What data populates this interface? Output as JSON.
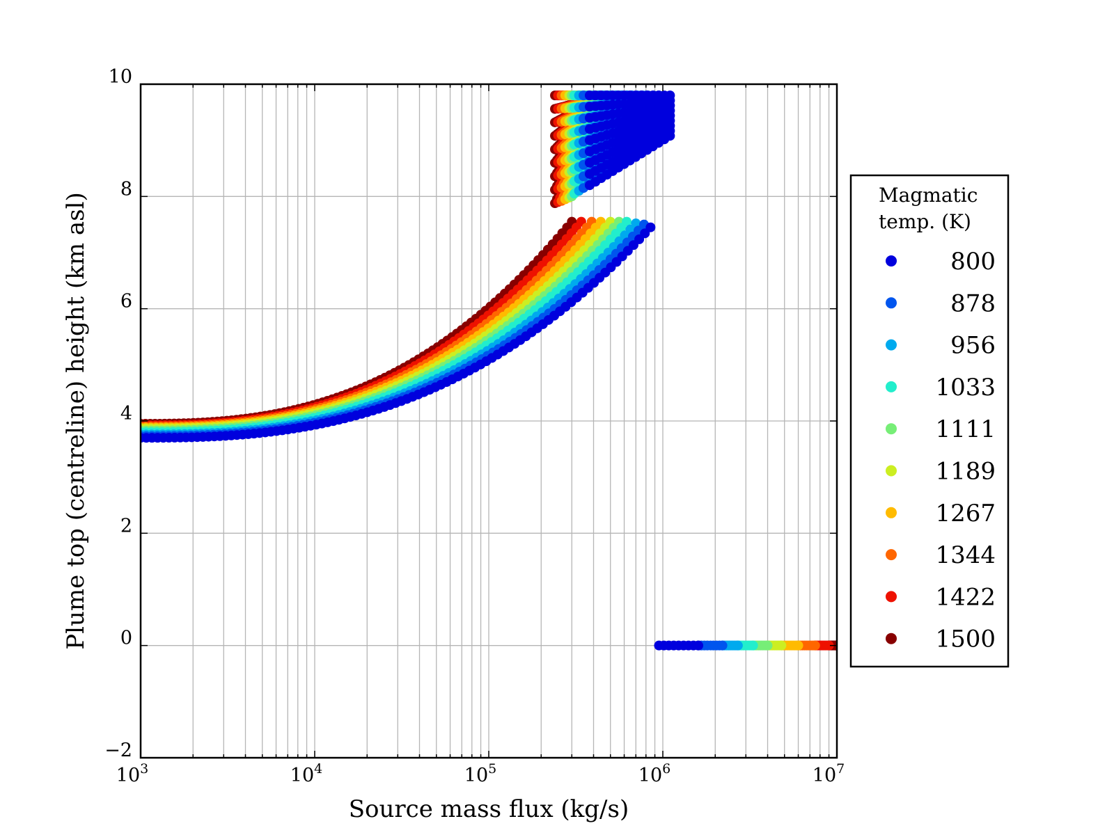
{
  "chart_data": {
    "type": "scatter",
    "title": "",
    "xlabel": "Source mass flux (kg/s)",
    "ylabel": "Plume top (centreline) height (km asl)",
    "xscale": "log",
    "xlim": [
      1000,
      10000000
    ],
    "ylim": [
      -2,
      10
    ],
    "grid": true,
    "x_ticks": [
      {
        "base": "10",
        "exp": "3"
      },
      {
        "base": "10",
        "exp": "4"
      },
      {
        "base": "10",
        "exp": "5"
      },
      {
        "base": "10",
        "exp": "6"
      },
      {
        "base": "10",
        "exp": "7"
      }
    ],
    "y_ticks": [
      "−2",
      "0",
      "2",
      "4",
      "6",
      "8",
      "10"
    ],
    "legend": {
      "title_line1": "Magmatic",
      "title_line2": "temp. (K)",
      "placement": "outside-right"
    },
    "series": [
      {
        "name": "800",
        "color": "#0000dd",
        "lower_branch": {
          "x_start": 1000,
          "x_end": 850000,
          "y_start": 3.7,
          "y_end": 7.45
        },
        "upper_branch": {
          "x_start": 380000,
          "x_end": 1100000,
          "y_low": 8.2,
          "y_high": 9.8
        },
        "zero_branch": {
          "x_start": 950000,
          "x_end": 1600000
        }
      },
      {
        "name": "878",
        "color": "#0055ee",
        "lower_branch": {
          "x_start": 1000,
          "x_end": 780000,
          "y_start": 3.73,
          "y_end": 7.5
        },
        "upper_branch": {
          "x_start": 350000,
          "x_end": 950000,
          "y_low": 8.15,
          "y_high": 9.8
        },
        "zero_branch": {
          "x_start": 1600000,
          "x_end": 2200000
        }
      },
      {
        "name": "956",
        "color": "#00aaee",
        "lower_branch": {
          "x_start": 1000,
          "x_end": 700000,
          "y_start": 3.76,
          "y_end": 7.52
        },
        "upper_branch": {
          "x_start": 330000,
          "x_end": 800000,
          "y_low": 8.1,
          "y_high": 9.8
        },
        "zero_branch": {
          "x_start": 2200000,
          "x_end": 2700000
        }
      },
      {
        "name": "1033",
        "color": "#22eecc",
        "lower_branch": {
          "x_start": 1000,
          "x_end": 620000,
          "y_start": 3.8,
          "y_end": 7.55
        },
        "upper_branch": {
          "x_start": 310000,
          "x_end": 660000,
          "y_low": 8.05,
          "y_high": 9.8
        },
        "zero_branch": {
          "x_start": 2700000,
          "x_end": 3300000
        }
      },
      {
        "name": "1111",
        "color": "#77ee77",
        "lower_branch": {
          "x_start": 1000,
          "x_end": 560000,
          "y_start": 3.83,
          "y_end": 7.55
        },
        "upper_branch": {
          "x_start": 300000,
          "x_end": 560000,
          "y_low": 8.0,
          "y_high": 9.8
        },
        "zero_branch": {
          "x_start": 3300000,
          "x_end": 4000000
        }
      },
      {
        "name": "1189",
        "color": "#ccee22",
        "lower_branch": {
          "x_start": 1000,
          "x_end": 500000,
          "y_start": 3.86,
          "y_end": 7.55
        },
        "upper_branch": {
          "x_start": 290000,
          "x_end": 480000,
          "y_low": 7.98,
          "y_high": 9.8
        },
        "zero_branch": {
          "x_start": 4000000,
          "x_end": 4800000
        }
      },
      {
        "name": "1267",
        "color": "#ffbb00",
        "lower_branch": {
          "x_start": 1000,
          "x_end": 440000,
          "y_start": 3.88,
          "y_end": 7.55
        },
        "upper_branch": {
          "x_start": 275000,
          "x_end": 420000,
          "y_low": 7.95,
          "y_high": 9.8
        },
        "zero_branch": {
          "x_start": 4800000,
          "x_end": 6000000
        }
      },
      {
        "name": "1344",
        "color": "#ff6600",
        "lower_branch": {
          "x_start": 1000,
          "x_end": 390000,
          "y_start": 3.9,
          "y_end": 7.55
        },
        "upper_branch": {
          "x_start": 262000,
          "x_end": 380000,
          "y_low": 7.92,
          "y_high": 9.8
        },
        "zero_branch": {
          "x_start": 6000000,
          "x_end": 7500000
        }
      },
      {
        "name": "1422",
        "color": "#ee1100",
        "lower_branch": {
          "x_start": 1000,
          "x_end": 340000,
          "y_start": 3.92,
          "y_end": 7.55
        },
        "upper_branch": {
          "x_start": 250000,
          "x_end": 360000,
          "y_low": 7.9,
          "y_high": 9.8
        },
        "zero_branch": {
          "x_start": 7500000,
          "x_end": 9000000
        }
      },
      {
        "name": "1500",
        "color": "#880000",
        "lower_branch": {
          "x_start": 1000,
          "x_end": 300000,
          "y_start": 3.95,
          "y_end": 7.55
        },
        "upper_branch": {
          "x_start": 240000,
          "x_end": 350000,
          "y_low": 7.88,
          "y_high": 9.8
        },
        "zero_branch": {
          "x_start": 9000000,
          "x_end": 10000000
        }
      }
    ]
  }
}
